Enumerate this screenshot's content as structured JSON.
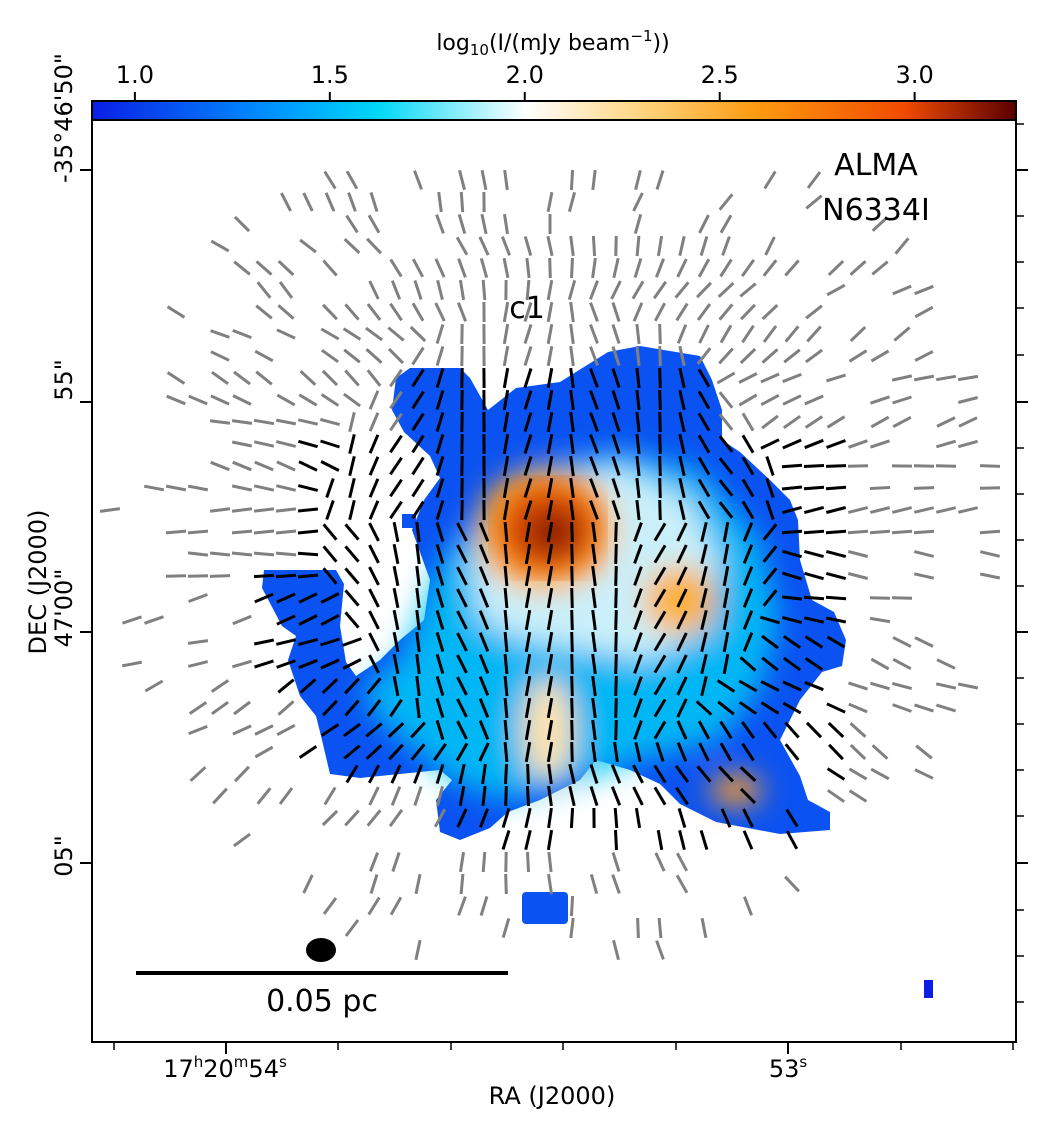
{
  "colors": {
    "colorbar_stops": [
      "#0a1ee6",
      "#0090ff",
      "#00d8f8",
      "#ffffff",
      "#ffd27a",
      "#ff9a10",
      "#f04a00",
      "#5a0000"
    ],
    "segments_strong": "#000000",
    "segments_weak": "#808080"
  },
  "chart_data": {
    "type": "heatmap",
    "title": "",
    "colorbar": {
      "label_prefix": "log",
      "label_subscript": "10",
      "label_main": "(I/(mJy beam",
      "label_superscript": "−1",
      "label_suffix": "))",
      "range": [
        0.89,
        3.26
      ],
      "ticks": [
        "1.0",
        "1.5",
        "2.0",
        "2.5",
        "3.0"
      ]
    },
    "xlabel": "RA (J2000)",
    "ylabel": "DEC (J2000)",
    "x_ticks": [
      {
        "h": "17",
        "hs": "h",
        "m": "20",
        "ms": "m",
        "s": "54",
        "ss": "s"
      },
      {
        "s": "53",
        "ss": "s"
      }
    ],
    "y_ticks": [
      "-35°46'50\"",
      "55\"",
      "47'00\"",
      "05\""
    ],
    "annotations": {
      "telescope": "ALMA",
      "source": "N6334I",
      "core": "c1",
      "scalebar": "0.05 pc"
    },
    "peaks": [
      {
        "name": "c1 main peak",
        "log_I": 3.2
      },
      {
        "name": "eastern secondary peak",
        "log_I": 2.6
      },
      {
        "name": "southern knot",
        "log_I": 2.5
      },
      {
        "name": "south-west ridge",
        "log_I": 2.1
      }
    ],
    "vector_map": {
      "strong_color": "black",
      "weak_color": "gray",
      "pattern": "hourglass-like field converging on c1; radial segments at periphery"
    }
  }
}
